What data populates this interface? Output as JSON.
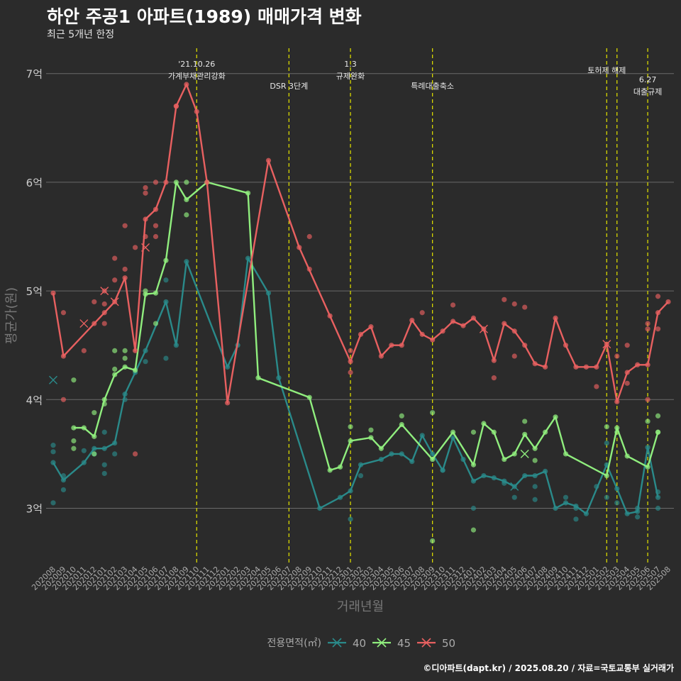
{
  "title": "하안 주공1 아파트(1989) 매매가격 변화",
  "subtitle": "최근 5개년 한정",
  "caption": "©디아파트(dapt.kr) / 2025.08.20 / 자료=국토교통부 실거래가",
  "chart_data": {
    "type": "line",
    "xlabel": "거래년월",
    "ylabel": "평균가(원)",
    "ylim": [
      2.5,
      7.2
    ],
    "yticks": [
      3,
      4,
      5,
      6,
      7
    ],
    "ytick_labels": [
      "3억",
      "4억",
      "5억",
      "6억",
      "7억"
    ],
    "categories": [
      "202008",
      "202009",
      "202010",
      "202011",
      "202012",
      "202101",
      "202102",
      "202103",
      "202104",
      "202105",
      "202106",
      "202107",
      "202108",
      "202109",
      "202110",
      "202111",
      "202112",
      "202201",
      "202202",
      "202203",
      "202204",
      "202205",
      "202206",
      "202207",
      "202208",
      "202209",
      "202210",
      "202211",
      "202212",
      "202301",
      "202302",
      "202303",
      "202304",
      "202305",
      "202306",
      "202307",
      "202308",
      "202309",
      "202310",
      "202311",
      "202312",
      "202401",
      "202402",
      "202403",
      "202404",
      "202405",
      "202406",
      "202407",
      "202408",
      "202409",
      "202410",
      "202411",
      "202412",
      "202501",
      "202502",
      "202503",
      "202504",
      "202505",
      "202506",
      "202507",
      "202508"
    ],
    "legend_title": "전용면적(㎡)",
    "legend_position": "bottom",
    "grid": true,
    "series": [
      {
        "name": "40",
        "color": "#2a8a8a",
        "x": [
          "202008",
          "202009",
          "202011",
          "202012",
          "202101",
          "202102",
          "202103",
          "202104",
          "202105",
          "202107",
          "202108",
          "202109",
          "202201",
          "202202",
          "202203",
          "202205",
          "202206",
          "202210",
          "202212",
          "202301",
          "202302",
          "202304",
          "202305",
          "202306",
          "202307",
          "202308",
          "202309",
          "202310",
          "202311",
          "202312",
          "202401",
          "202402",
          "202403",
          "202404",
          "202405",
          "202406",
          "202407",
          "202408",
          "202409",
          "202410",
          "202411",
          "202412",
          "202502",
          "202503",
          "202504",
          "202505",
          "202506",
          "202507"
        ],
        "values": [
          3.42,
          3.26,
          3.42,
          3.55,
          3.55,
          3.6,
          4.05,
          4.25,
          4.45,
          4.9,
          4.5,
          5.27,
          4.3,
          4.5,
          5.3,
          4.98,
          4.2,
          3.0,
          3.1,
          3.16,
          3.4,
          3.45,
          3.5,
          3.5,
          3.43,
          3.67,
          3.5,
          3.35,
          3.65,
          3.45,
          3.25,
          3.3,
          3.28,
          3.25,
          3.2,
          3.3,
          3.3,
          3.34,
          3.0,
          3.05,
          3.02,
          2.95,
          3.4,
          3.18,
          2.95,
          2.97,
          3.56,
          3.1
        ],
        "points": [
          {
            "x": "202008",
            "y": 3.58
          },
          {
            "x": "202008",
            "y": 3.52
          },
          {
            "x": "202008",
            "y": 3.05
          },
          {
            "x": "202009",
            "y": 3.3
          },
          {
            "x": "202009",
            "y": 3.17
          },
          {
            "x": "202011",
            "y": 3.53
          },
          {
            "x": "202012",
            "y": 3.5
          },
          {
            "x": "202101",
            "y": 3.7
          },
          {
            "x": "202101",
            "y": 3.4
          },
          {
            "x": "202101",
            "y": 3.32
          },
          {
            "x": "202102",
            "y": 3.5
          },
          {
            "x": "202103",
            "y": 4.0
          },
          {
            "x": "202105",
            "y": 4.35
          },
          {
            "x": "202107",
            "y": 4.38
          },
          {
            "x": "202107",
            "y": 5.1
          },
          {
            "x": "202302",
            "y": 3.3
          },
          {
            "x": "202301",
            "y": 2.9
          },
          {
            "x": "202310",
            "y": 3.35
          },
          {
            "x": "202401",
            "y": 3.0
          },
          {
            "x": "202404",
            "y": 3.23
          },
          {
            "x": "202405",
            "y": 3.1
          },
          {
            "x": "202407",
            "y": 3.2
          },
          {
            "x": "202407",
            "y": 3.08
          },
          {
            "x": "202410",
            "y": 3.1
          },
          {
            "x": "202411",
            "y": 3.0
          },
          {
            "x": "202411",
            "y": 2.9
          },
          {
            "x": "202501",
            "y": 3.2
          },
          {
            "x": "202502",
            "y": 3.6
          },
          {
            "x": "202502",
            "y": 3.1
          },
          {
            "x": "202503",
            "y": 3.05
          },
          {
            "x": "202505",
            "y": 2.92
          },
          {
            "x": "202505",
            "y": 3.0
          },
          {
            "x": "202507",
            "y": 3.15
          },
          {
            "x": "202507",
            "y": 3.0
          }
        ],
        "crosses": [
          {
            "x": "202008",
            "y": 4.18
          },
          {
            "x": "202405",
            "y": 3.2
          }
        ]
      },
      {
        "name": "45",
        "color": "#90ee7e",
        "x": [
          "202010",
          "202011",
          "202012",
          "202101",
          "202102",
          "202103",
          "202104",
          "202105",
          "202106",
          "202107",
          "202108",
          "202109",
          "202111",
          "202203",
          "202204",
          "202209",
          "202211",
          "202212",
          "202301",
          "202303",
          "202304",
          "202306",
          "202309",
          "202311",
          "202401",
          "202402",
          "202403",
          "202404",
          "202405",
          "202406",
          "202407",
          "202408",
          "202409",
          "202410",
          "202502",
          "202503",
          "202504",
          "202506",
          "202507"
        ],
        "values": [
          3.74,
          3.74,
          3.66,
          4.0,
          4.23,
          4.3,
          4.27,
          4.97,
          4.98,
          5.28,
          6.0,
          5.84,
          6.0,
          5.9,
          4.2,
          4.02,
          3.35,
          3.38,
          3.62,
          3.65,
          3.55,
          3.77,
          3.45,
          3.7,
          3.4,
          3.78,
          3.7,
          3.45,
          3.5,
          3.68,
          3.55,
          3.7,
          3.84,
          3.5,
          3.3,
          3.74,
          3.48,
          3.38,
          3.7
        ],
        "points": [
          {
            "x": "202010",
            "y": 4.18
          },
          {
            "x": "202010",
            "y": 3.62
          },
          {
            "x": "202010",
            "y": 3.55
          },
          {
            "x": "202012",
            "y": 3.88
          },
          {
            "x": "202012",
            "y": 3.5
          },
          {
            "x": "202101",
            "y": 3.96
          },
          {
            "x": "202102",
            "y": 4.45
          },
          {
            "x": "202102",
            "y": 4.28
          },
          {
            "x": "202103",
            "y": 4.45
          },
          {
            "x": "202103",
            "y": 4.38
          },
          {
            "x": "202105",
            "y": 5.0
          },
          {
            "x": "202106",
            "y": 4.7
          },
          {
            "x": "202109",
            "y": 5.7
          },
          {
            "x": "202109",
            "y": 6.0
          },
          {
            "x": "202301",
            "y": 3.75
          },
          {
            "x": "202303",
            "y": 3.72
          },
          {
            "x": "202306",
            "y": 3.85
          },
          {
            "x": "202309",
            "y": 3.88
          },
          {
            "x": "202309",
            "y": 2.7
          },
          {
            "x": "202401",
            "y": 3.7
          },
          {
            "x": "202401",
            "y": 2.8
          },
          {
            "x": "202406",
            "y": 3.8
          },
          {
            "x": "202407",
            "y": 3.44
          },
          {
            "x": "202502",
            "y": 3.75
          },
          {
            "x": "202503",
            "y": 3.7
          },
          {
            "x": "202506",
            "y": 3.8
          },
          {
            "x": "202507",
            "y": 3.85
          },
          {
            "x": "202507",
            "y": 3.7
          }
        ],
        "crosses": [
          {
            "x": "202406",
            "y": 3.5
          }
        ]
      },
      {
        "name": "50",
        "color": "#e86060",
        "x": [
          "202008",
          "202009",
          "202012",
          "202101",
          "202102",
          "202103",
          "202104",
          "202105",
          "202106",
          "202107",
          "202108",
          "202109",
          "202110",
          "202111",
          "202201",
          "202205",
          "202208",
          "202211",
          "202301",
          "202302",
          "202303",
          "202304",
          "202305",
          "202306",
          "202307",
          "202308",
          "202309",
          "202310",
          "202311",
          "202312",
          "202401",
          "202402",
          "202403",
          "202404",
          "202405",
          "202406",
          "202407",
          "202408",
          "202409",
          "202410",
          "202411",
          "202412",
          "202501",
          "202502",
          "202503",
          "202504",
          "202505",
          "202506",
          "202507",
          "202508"
        ],
        "values": [
          4.98,
          4.4,
          4.7,
          4.8,
          4.9,
          5.12,
          4.45,
          5.66,
          5.75,
          6.0,
          6.7,
          6.9,
          6.65,
          6.0,
          3.97,
          6.2,
          5.4,
          4.77,
          4.35,
          4.6,
          4.67,
          4.4,
          4.5,
          4.5,
          4.73,
          4.6,
          4.55,
          4.63,
          4.72,
          4.68,
          4.75,
          4.65,
          4.36,
          4.7,
          4.63,
          4.5,
          4.33,
          4.3,
          4.75,
          4.5,
          4.3,
          4.3,
          4.3,
          4.51,
          3.98,
          4.25,
          4.32,
          4.32,
          4.8,
          4.9
        ],
        "points": [
          {
            "x": "202009",
            "y": 4.8
          },
          {
            "x": "202009",
            "y": 4.0
          },
          {
            "x": "202011",
            "y": 4.45
          },
          {
            "x": "202012",
            "y": 4.9
          },
          {
            "x": "202101",
            "y": 4.7
          },
          {
            "x": "202101",
            "y": 4.88
          },
          {
            "x": "202101",
            "y": 5.0
          },
          {
            "x": "202102",
            "y": 5.3
          },
          {
            "x": "202102",
            "y": 5.1
          },
          {
            "x": "202103",
            "y": 5.6
          },
          {
            "x": "202103",
            "y": 5.2
          },
          {
            "x": "202104",
            "y": 5.4
          },
          {
            "x": "202104",
            "y": 3.5
          },
          {
            "x": "202105",
            "y": 5.95
          },
          {
            "x": "202105",
            "y": 5.9
          },
          {
            "x": "202105",
            "y": 5.5
          },
          {
            "x": "202106",
            "y": 6.0
          },
          {
            "x": "202106",
            "y": 5.6
          },
          {
            "x": "202106",
            "y": 5.5
          },
          {
            "x": "202108",
            "y": 6.7
          },
          {
            "x": "202209",
            "y": 5.5
          },
          {
            "x": "202209",
            "y": 5.2
          },
          {
            "x": "202301",
            "y": 4.45
          },
          {
            "x": "202301",
            "y": 4.25
          },
          {
            "x": "202308",
            "y": 4.8
          },
          {
            "x": "202311",
            "y": 4.87
          },
          {
            "x": "202403",
            "y": 4.2
          },
          {
            "x": "202404",
            "y": 4.92
          },
          {
            "x": "202405",
            "y": 4.88
          },
          {
            "x": "202405",
            "y": 4.4
          },
          {
            "x": "202406",
            "y": 4.85
          },
          {
            "x": "202501",
            "y": 4.12
          },
          {
            "x": "202503",
            "y": 4.4
          },
          {
            "x": "202504",
            "y": 4.5
          },
          {
            "x": "202504",
            "y": 4.15
          },
          {
            "x": "202506",
            "y": 4.7
          },
          {
            "x": "202506",
            "y": 4.65
          },
          {
            "x": "202506",
            "y": 4.0
          },
          {
            "x": "202507",
            "y": 4.95
          },
          {
            "x": "202507",
            "y": 4.65
          }
        ],
        "crosses": [
          {
            "x": "202011",
            "y": 4.7
          },
          {
            "x": "202101",
            "y": 5.0
          },
          {
            "x": "202102",
            "y": 4.9
          },
          {
            "x": "202105",
            "y": 5.4
          },
          {
            "x": "202402",
            "y": 4.65
          },
          {
            "x": "202502",
            "y": 4.51
          }
        ]
      }
    ],
    "annotations": [
      {
        "x": "202110",
        "lines": [
          "'21.10.26",
          "가계부채관리강화"
        ],
        "row": "top"
      },
      {
        "x": "202207",
        "lines": [
          "DSR 3단계"
        ],
        "row": "low"
      },
      {
        "x": "202301",
        "lines": [
          "1.3",
          "규제완화"
        ],
        "row": "top"
      },
      {
        "x": "202309",
        "lines": [
          "특례대출축소"
        ],
        "row": "low"
      },
      {
        "x": "202502",
        "lines": [
          "토허제 해제"
        ],
        "row": "mid"
      },
      {
        "x": "202503",
        "lines": [],
        "row": "mid"
      },
      {
        "x": "202506",
        "lines": [
          "6.27",
          "대출규제"
        ],
        "row": "low"
      }
    ]
  }
}
